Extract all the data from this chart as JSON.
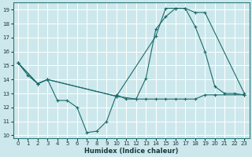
{
  "xlabel": "Humidex (Indice chaleur)",
  "bg_color": "#cde8ec",
  "grid_color": "#ffffff",
  "line_color": "#1a6b6b",
  "xlim": [
    -0.5,
    23.5
  ],
  "ylim": [
    9.8,
    19.5
  ],
  "yticks": [
    10,
    11,
    12,
    13,
    14,
    15,
    16,
    17,
    18,
    19
  ],
  "xticks": [
    0,
    1,
    2,
    3,
    4,
    5,
    6,
    7,
    8,
    9,
    10,
    11,
    12,
    13,
    14,
    15,
    16,
    17,
    18,
    19,
    20,
    21,
    22,
    23
  ],
  "line1_x": [
    0,
    1,
    2,
    3,
    4,
    5,
    6,
    7,
    8,
    9,
    10,
    11,
    12,
    13,
    14,
    15,
    16,
    17,
    18,
    19,
    20,
    21,
    22,
    23
  ],
  "line1_y": [
    15.2,
    14.3,
    13.7,
    14.0,
    12.5,
    12.5,
    12.0,
    10.2,
    10.3,
    11.0,
    12.9,
    12.6,
    12.6,
    14.1,
    17.6,
    18.5,
    19.1,
    19.1,
    17.8,
    16.0,
    13.5,
    13.0,
    13.0,
    12.9
  ],
  "line2_x": [
    0,
    2,
    3,
    10,
    14,
    15,
    16,
    17,
    18,
    19,
    23
  ],
  "line2_y": [
    15.2,
    13.7,
    14.0,
    12.8,
    17.1,
    19.1,
    19.1,
    19.1,
    18.8,
    18.8,
    13.0
  ],
  "line3_x": [
    0,
    2,
    3,
    10,
    12,
    13,
    14,
    15,
    16,
    17,
    18,
    19,
    20,
    23
  ],
  "line3_y": [
    15.2,
    13.7,
    14.0,
    12.8,
    12.6,
    12.6,
    12.6,
    12.6,
    12.6,
    12.6,
    12.6,
    12.9,
    12.9,
    12.9
  ]
}
